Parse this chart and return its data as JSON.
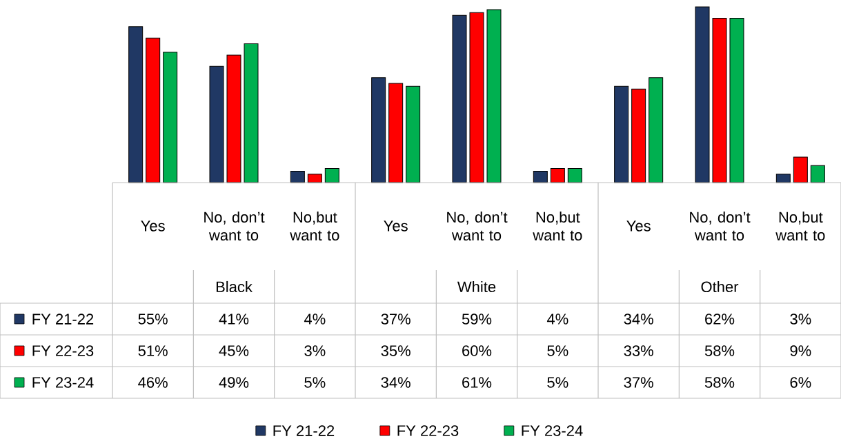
{
  "chart_data": {
    "type": "bar",
    "categories": [
      "Yes",
      "No, don’t want to",
      "No,but want to",
      "Yes",
      "No, don’t want to",
      "No,but want to",
      "Yes",
      "No, don’t want to",
      "No,but want to"
    ],
    "annotations": [
      "Black",
      "White",
      "Other"
    ],
    "series": [
      {
        "name": "FY 21-22",
        "color": "#203864",
        "values": [
          55,
          41,
          4,
          37,
          59,
          4,
          34,
          62,
          3
        ],
        "value_labels": [
          "55%",
          "41%",
          "4%",
          "37%",
          "59%",
          "4%",
          "34%",
          "62%",
          "3%"
        ]
      },
      {
        "name": "FY 22-23",
        "color": "#ff0000",
        "values": [
          51,
          45,
          3,
          35,
          60,
          5,
          33,
          58,
          9
        ],
        "value_labels": [
          "51%",
          "45%",
          "3%",
          "35%",
          "60%",
          "5%",
          "33%",
          "58%",
          "9%"
        ]
      },
      {
        "name": "FY 23-24",
        "color": "#00b050",
        "values": [
          46,
          49,
          5,
          34,
          61,
          5,
          37,
          58,
          6
        ],
        "value_labels": [
          "46%",
          "49%",
          "5%",
          "34%",
          "61%",
          "5%",
          "37%",
          "58%",
          "6%"
        ]
      }
    ],
    "legend": "bottom"
  }
}
